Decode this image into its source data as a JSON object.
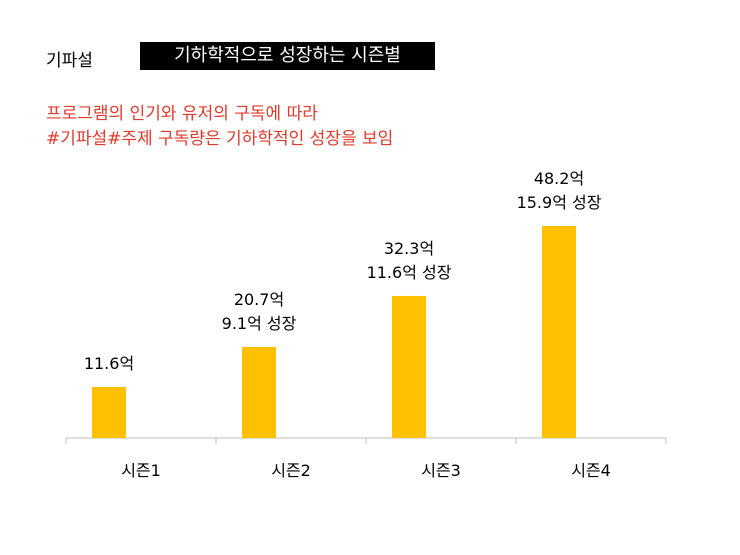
{
  "header": {
    "brand": "기파설",
    "title": "기하학적으로 성장하는 시즌별"
  },
  "subtitle": {
    "line1": "프로그램의 인기와 유저의 구독에 따라",
    "line2": "#기파설#주제 구독량은 기하학적인 성장을 보임"
  },
  "colors": {
    "bar": "#FFC000",
    "subtitle": "#E03A2C"
  },
  "chart_data": {
    "type": "bar",
    "categories": [
      "시즌1",
      "시즌2",
      "시즌3",
      "시즌4"
    ],
    "values": [
      11.6,
      20.7,
      32.3,
      48.2
    ],
    "data_labels": [
      [
        "11.6억"
      ],
      [
        "20.7억",
        "9.1억 성장"
      ],
      [
        "32.3억",
        "11.6억 성장"
      ],
      [
        "48.2억",
        "15.9억 성장"
      ]
    ],
    "ylim": [
      0,
      55
    ],
    "grid": false,
    "legend": "none"
  }
}
